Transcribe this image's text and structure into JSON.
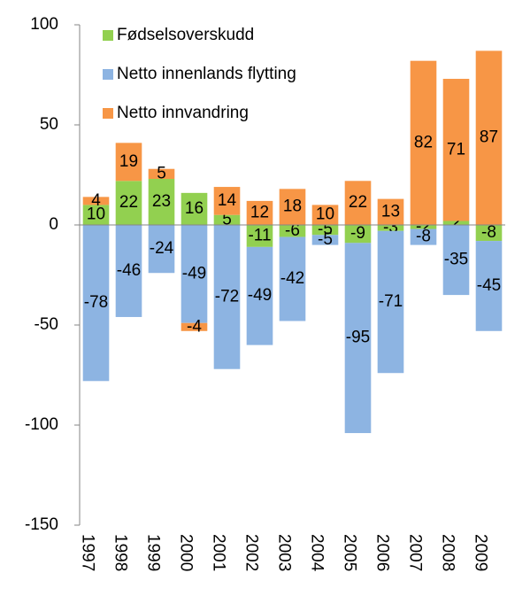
{
  "chart_data": {
    "type": "stacked-bar",
    "categories": [
      "1997",
      "1998",
      "1999",
      "2000",
      "2001",
      "2002",
      "2003",
      "2004",
      "2005",
      "2006",
      "2007",
      "2008",
      "2009"
    ],
    "series": [
      {
        "name": "Fødselsoverskudd",
        "color": "#92d050",
        "values": [
          10,
          22,
          23,
          16,
          5,
          -11,
          -6,
          -5,
          -9,
          -3,
          -2,
          2,
          -8
        ]
      },
      {
        "name": "Netto innenlands flytting",
        "color": "#8db4e2",
        "values": [
          -78,
          -46,
          -24,
          -49,
          -72,
          -49,
          -42,
          -5,
          -95,
          -71,
          -8,
          -35,
          -45
        ]
      },
      {
        "name": "Netto innvandring",
        "color": "#f79646",
        "values": [
          4,
          19,
          5,
          -4,
          14,
          12,
          18,
          10,
          22,
          13,
          82,
          71,
          87
        ]
      }
    ],
    "ylim": [
      -150,
      100
    ],
    "yticks": [
      -150,
      -100,
      -50,
      0,
      50,
      100
    ],
    "grid": false,
    "legend": "upper-left"
  }
}
